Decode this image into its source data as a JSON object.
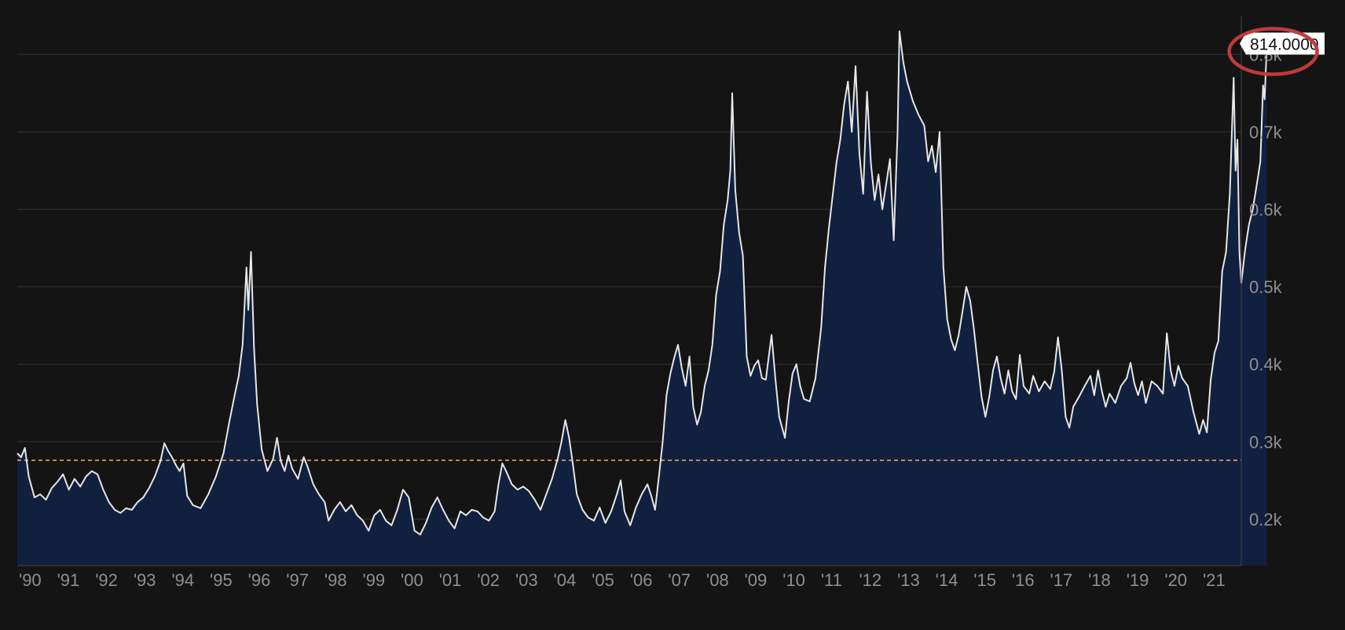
{
  "chart_data": {
    "type": "area",
    "x_ticks": [
      "'90",
      "'91",
      "'92",
      "'93",
      "'94",
      "'95",
      "'96",
      "'97",
      "'98",
      "'99",
      "'00",
      "'01",
      "'02",
      "'03",
      "'04",
      "'05",
      "'06",
      "'07",
      "'08",
      "'09",
      "'10",
      "'11",
      "'12",
      "'13",
      "'14",
      "'15",
      "'16",
      "'17",
      "'18",
      "'19",
      "'20",
      "'21"
    ],
    "y_ticks": [
      {
        "value": 200,
        "label": "0.2k"
      },
      {
        "value": 300,
        "label": "0.3k"
      },
      {
        "value": 400,
        "label": "0.4k"
      },
      {
        "value": 500,
        "label": "0.5k"
      },
      {
        "value": 600,
        "label": "0.6k"
      },
      {
        "value": 700,
        "label": "0.7k"
      },
      {
        "value": 800,
        "label": "0.8k"
      }
    ],
    "ylim": [
      140,
      850
    ],
    "xlim": [
      1990.0,
      2022.05
    ],
    "grid": true,
    "reference_line": 276,
    "last_value_label": "814.0000",
    "series": [
      {
        "points": [
          [
            1990.0,
            285
          ],
          [
            1990.1,
            280
          ],
          [
            1990.2,
            292
          ],
          [
            1990.3,
            255
          ],
          [
            1990.45,
            228
          ],
          [
            1990.6,
            232
          ],
          [
            1990.75,
            225
          ],
          [
            1990.9,
            240
          ],
          [
            1991.05,
            248
          ],
          [
            1991.2,
            258
          ],
          [
            1991.35,
            238
          ],
          [
            1991.5,
            252
          ],
          [
            1991.65,
            242
          ],
          [
            1991.8,
            255
          ],
          [
            1991.95,
            262
          ],
          [
            1992.1,
            258
          ],
          [
            1992.25,
            238
          ],
          [
            1992.4,
            222
          ],
          [
            1992.55,
            212
          ],
          [
            1992.7,
            208
          ],
          [
            1992.85,
            214
          ],
          [
            1993.0,
            212
          ],
          [
            1993.15,
            222
          ],
          [
            1993.3,
            228
          ],
          [
            1993.45,
            240
          ],
          [
            1993.6,
            255
          ],
          [
            1993.75,
            275
          ],
          [
            1993.85,
            298
          ],
          [
            1993.95,
            288
          ],
          [
            1994.05,
            280
          ],
          [
            1994.15,
            270
          ],
          [
            1994.25,
            262
          ],
          [
            1994.35,
            272
          ],
          [
            1994.45,
            230
          ],
          [
            1994.6,
            218
          ],
          [
            1994.8,
            214
          ],
          [
            1995.0,
            232
          ],
          [
            1995.2,
            255
          ],
          [
            1995.4,
            285
          ],
          [
            1995.55,
            325
          ],
          [
            1995.7,
            362
          ],
          [
            1995.8,
            385
          ],
          [
            1995.9,
            425
          ],
          [
            1996.0,
            525
          ],
          [
            1996.05,
            470
          ],
          [
            1996.12,
            545
          ],
          [
            1996.2,
            420
          ],
          [
            1996.28,
            348
          ],
          [
            1996.4,
            290
          ],
          [
            1996.55,
            262
          ],
          [
            1996.7,
            278
          ],
          [
            1996.8,
            305
          ],
          [
            1996.9,
            275
          ],
          [
            1997.0,
            262
          ],
          [
            1997.1,
            282
          ],
          [
            1997.2,
            265
          ],
          [
            1997.35,
            252
          ],
          [
            1997.5,
            280
          ],
          [
            1997.6,
            268
          ],
          [
            1997.75,
            245
          ],
          [
            1997.9,
            232
          ],
          [
            1998.05,
            222
          ],
          [
            1998.15,
            198
          ],
          [
            1998.3,
            212
          ],
          [
            1998.45,
            222
          ],
          [
            1998.6,
            210
          ],
          [
            1998.75,
            218
          ],
          [
            1998.9,
            205
          ],
          [
            1999.05,
            198
          ],
          [
            1999.2,
            185
          ],
          [
            1999.35,
            205
          ],
          [
            1999.5,
            212
          ],
          [
            1999.65,
            198
          ],
          [
            1999.8,
            192
          ],
          [
            1999.95,
            212
          ],
          [
            2000.1,
            238
          ],
          [
            2000.25,
            228
          ],
          [
            2000.4,
            185
          ],
          [
            2000.55,
            180
          ],
          [
            2000.7,
            195
          ],
          [
            2000.85,
            215
          ],
          [
            2001.0,
            228
          ],
          [
            2001.15,
            212
          ],
          [
            2001.3,
            198
          ],
          [
            2001.45,
            188
          ],
          [
            2001.6,
            210
          ],
          [
            2001.75,
            205
          ],
          [
            2001.9,
            212
          ],
          [
            2002.05,
            210
          ],
          [
            2002.2,
            202
          ],
          [
            2002.35,
            198
          ],
          [
            2002.5,
            210
          ],
          [
            2002.6,
            245
          ],
          [
            2002.7,
            272
          ],
          [
            2002.8,
            262
          ],
          [
            2002.95,
            245
          ],
          [
            2003.1,
            238
          ],
          [
            2003.25,
            242
          ],
          [
            2003.4,
            236
          ],
          [
            2003.55,
            225
          ],
          [
            2003.7,
            212
          ],
          [
            2003.85,
            232
          ],
          [
            2004.0,
            252
          ],
          [
            2004.15,
            278
          ],
          [
            2004.25,
            300
          ],
          [
            2004.35,
            328
          ],
          [
            2004.45,
            305
          ],
          [
            2004.55,
            270
          ],
          [
            2004.65,
            232
          ],
          [
            2004.8,
            212
          ],
          [
            2004.95,
            202
          ],
          [
            2005.1,
            198
          ],
          [
            2005.25,
            215
          ],
          [
            2005.4,
            195
          ],
          [
            2005.55,
            210
          ],
          [
            2005.7,
            232
          ],
          [
            2005.8,
            250
          ],
          [
            2005.9,
            210
          ],
          [
            2006.05,
            192
          ],
          [
            2006.2,
            215
          ],
          [
            2006.35,
            232
          ],
          [
            2006.5,
            245
          ],
          [
            2006.6,
            230
          ],
          [
            2006.7,
            212
          ],
          [
            2006.8,
            255
          ],
          [
            2006.9,
            300
          ],
          [
            2007.0,
            360
          ],
          [
            2007.1,
            388
          ],
          [
            2007.2,
            408
          ],
          [
            2007.3,
            425
          ],
          [
            2007.4,
            395
          ],
          [
            2007.5,
            372
          ],
          [
            2007.6,
            410
          ],
          [
            2007.7,
            345
          ],
          [
            2007.8,
            322
          ],
          [
            2007.9,
            338
          ],
          [
            2008.0,
            372
          ],
          [
            2008.1,
            392
          ],
          [
            2008.2,
            425
          ],
          [
            2008.3,
            490
          ],
          [
            2008.4,
            520
          ],
          [
            2008.5,
            580
          ],
          [
            2008.6,
            612
          ],
          [
            2008.67,
            650
          ],
          [
            2008.72,
            750
          ],
          [
            2008.8,
            625
          ],
          [
            2008.9,
            570
          ],
          [
            2009.0,
            540
          ],
          [
            2009.1,
            410
          ],
          [
            2009.2,
            385
          ],
          [
            2009.3,
            398
          ],
          [
            2009.4,
            405
          ],
          [
            2009.5,
            382
          ],
          [
            2009.6,
            380
          ],
          [
            2009.75,
            438
          ],
          [
            2009.85,
            382
          ],
          [
            2009.95,
            332
          ],
          [
            2010.1,
            305
          ],
          [
            2010.2,
            352
          ],
          [
            2010.3,
            388
          ],
          [
            2010.4,
            400
          ],
          [
            2010.5,
            372
          ],
          [
            2010.6,
            355
          ],
          [
            2010.75,
            352
          ],
          [
            2010.9,
            382
          ],
          [
            2011.05,
            448
          ],
          [
            2011.15,
            525
          ],
          [
            2011.25,
            575
          ],
          [
            2011.35,
            618
          ],
          [
            2011.45,
            660
          ],
          [
            2011.55,
            690
          ],
          [
            2011.65,
            735
          ],
          [
            2011.75,
            765
          ],
          [
            2011.85,
            700
          ],
          [
            2011.95,
            785
          ],
          [
            2012.05,
            672
          ],
          [
            2012.15,
            620
          ],
          [
            2012.25,
            752
          ],
          [
            2012.35,
            660
          ],
          [
            2012.45,
            612
          ],
          [
            2012.55,
            645
          ],
          [
            2012.65,
            600
          ],
          [
            2012.75,
            632
          ],
          [
            2012.85,
            665
          ],
          [
            2012.95,
            560
          ],
          [
            2013.05,
            700
          ],
          [
            2013.1,
            830
          ],
          [
            2013.2,
            790
          ],
          [
            2013.3,
            765
          ],
          [
            2013.45,
            740
          ],
          [
            2013.6,
            722
          ],
          [
            2013.75,
            708
          ],
          [
            2013.85,
            662
          ],
          [
            2013.95,
            682
          ],
          [
            2014.05,
            648
          ],
          [
            2014.15,
            700
          ],
          [
            2014.25,
            525
          ],
          [
            2014.35,
            458
          ],
          [
            2014.45,
            432
          ],
          [
            2014.55,
            418
          ],
          [
            2014.65,
            438
          ],
          [
            2014.75,
            468
          ],
          [
            2014.85,
            500
          ],
          [
            2014.95,
            482
          ],
          [
            2015.05,
            445
          ],
          [
            2015.15,
            400
          ],
          [
            2015.25,
            358
          ],
          [
            2015.35,
            332
          ],
          [
            2015.45,
            358
          ],
          [
            2015.55,
            392
          ],
          [
            2015.65,
            410
          ],
          [
            2015.75,
            382
          ],
          [
            2015.85,
            362
          ],
          [
            2015.95,
            392
          ],
          [
            2016.05,
            365
          ],
          [
            2016.15,
            355
          ],
          [
            2016.25,
            412
          ],
          [
            2016.35,
            372
          ],
          [
            2016.5,
            362
          ],
          [
            2016.6,
            385
          ],
          [
            2016.75,
            365
          ],
          [
            2016.9,
            378
          ],
          [
            2017.05,
            368
          ],
          [
            2017.15,
            390
          ],
          [
            2017.25,
            435
          ],
          [
            2017.35,
            392
          ],
          [
            2017.45,
            332
          ],
          [
            2017.55,
            318
          ],
          [
            2017.65,
            345
          ],
          [
            2017.8,
            358
          ],
          [
            2017.95,
            372
          ],
          [
            2018.1,
            385
          ],
          [
            2018.2,
            360
          ],
          [
            2018.3,
            392
          ],
          [
            2018.4,
            365
          ],
          [
            2018.5,
            345
          ],
          [
            2018.6,
            362
          ],
          [
            2018.75,
            350
          ],
          [
            2018.9,
            372
          ],
          [
            2019.05,
            382
          ],
          [
            2019.15,
            402
          ],
          [
            2019.25,
            375
          ],
          [
            2019.35,
            360
          ],
          [
            2019.45,
            378
          ],
          [
            2019.55,
            350
          ],
          [
            2019.7,
            378
          ],
          [
            2019.85,
            372
          ],
          [
            2020.0,
            362
          ],
          [
            2020.1,
            440
          ],
          [
            2020.2,
            392
          ],
          [
            2020.3,
            372
          ],
          [
            2020.4,
            398
          ],
          [
            2020.5,
            382
          ],
          [
            2020.65,
            372
          ],
          [
            2020.8,
            338
          ],
          [
            2020.95,
            310
          ],
          [
            2021.05,
            328
          ],
          [
            2021.15,
            312
          ],
          [
            2021.25,
            380
          ],
          [
            2021.35,
            415
          ],
          [
            2021.45,
            430
          ],
          [
            2021.55,
            520
          ],
          [
            2021.65,
            545
          ],
          [
            2021.75,
            620
          ],
          [
            2021.85,
            770
          ],
          [
            2021.9,
            650
          ],
          [
            2021.95,
            690
          ],
          [
            2022.0,
            545
          ],
          [
            2022.05,
            505
          ],
          [
            2022.15,
            548
          ],
          [
            2022.25,
            580
          ],
          [
            2022.35,
            600
          ],
          [
            2022.45,
            630
          ],
          [
            2022.55,
            662
          ],
          [
            2022.62,
            760
          ],
          [
            2022.66,
            742
          ],
          [
            2022.7,
            790
          ],
          [
            2022.72,
            814
          ]
        ]
      }
    ]
  }
}
